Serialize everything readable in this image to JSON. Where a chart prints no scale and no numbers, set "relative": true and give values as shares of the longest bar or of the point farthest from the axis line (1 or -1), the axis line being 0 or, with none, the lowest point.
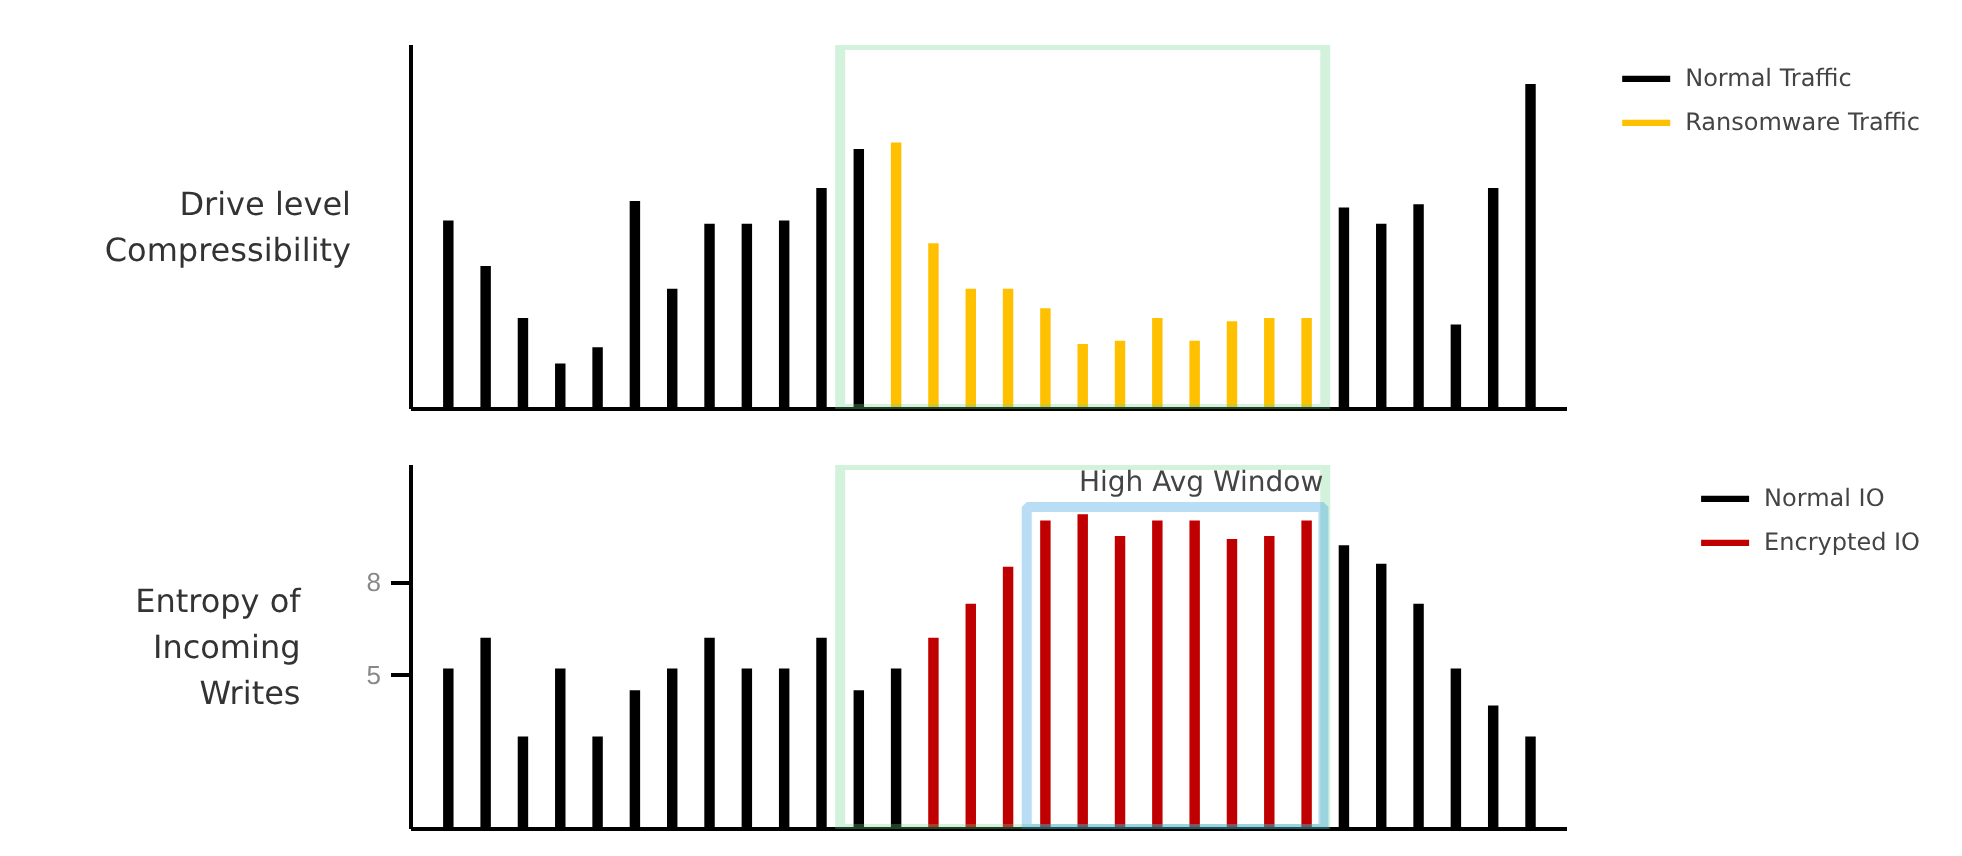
{
  "chart_data": [
    {
      "type": "bar",
      "relative": true,
      "ylabel": "Drive level\nCompressibility",
      "categories": [
        null,
        null,
        null,
        null,
        null,
        null,
        null,
        null,
        null,
        null,
        null,
        null,
        null,
        null,
        null,
        null,
        null,
        null,
        null,
        null,
        null,
        null,
        null,
        null,
        null,
        null,
        null,
        null,
        null,
        null
      ],
      "legend": "top right",
      "stacked": true,
      "series": [
        {
          "name": "Normal Traffic",
          "color": "#000000",
          "values": [
            0.58,
            0.44,
            0.28,
            0.14,
            0.19,
            0.64,
            0.37,
            0.57,
            0.57,
            0.58,
            0.68,
            0.8,
            0,
            0,
            0,
            0,
            0,
            0,
            0,
            0,
            0,
            0,
            0,
            0,
            0.62,
            0.57,
            0.63,
            0.26,
            0.68,
            1
          ]
        },
        {
          "name": "Ransomware Traffic",
          "color": "#ffc000",
          "values": [
            0,
            0,
            0,
            0,
            0,
            0,
            0,
            0,
            0,
            0,
            0,
            0,
            0.82,
            0.51,
            0.37,
            0.37,
            0.31,
            0.2,
            0.21,
            0.28,
            0.21,
            0.27,
            0.28,
            0.28,
            0,
            0,
            0,
            0,
            0,
            0
          ]
        }
      ]
    },
    {
      "type": "bar",
      "ylabel": "Entropy of\nIncoming\nWrites",
      "categories": [
        null,
        null,
        null,
        null,
        null,
        null,
        null,
        null,
        null,
        null,
        null,
        null,
        null,
        null,
        null,
        null,
        null,
        null,
        null,
        null,
        null,
        null,
        null,
        null,
        null,
        null,
        null,
        null,
        null,
        null
      ],
      "ylim": [
        0,
        11.8
      ],
      "yticks": [
        5,
        8
      ],
      "tick_labels": "y",
      "legend": "top right",
      "annotations": [
        "High Avg Window"
      ],
      "stacked": true,
      "series": [
        {
          "name": "Normal IO",
          "color": "#000000",
          "values": [
            5.2,
            6.2,
            3.0,
            5.2,
            3.0,
            4.5,
            5.2,
            6.2,
            5.2,
            5.2,
            6.2,
            4.5,
            5.2,
            0,
            0,
            0,
            0,
            0,
            0,
            0,
            0,
            0,
            0,
            0,
            9.2,
            8.6,
            7.3,
            5.2,
            4.0,
            3.0
          ]
        },
        {
          "name": "Encrypted IO",
          "color": "#c00000",
          "values": [
            0,
            0,
            0,
            0,
            0,
            0,
            0,
            0,
            0,
            0,
            0,
            0,
            0,
            6.2,
            7.3,
            8.5,
            10.0,
            10.2,
            9.5,
            10.0,
            10.0,
            9.4,
            9.5,
            10.0,
            0,
            0,
            0,
            0,
            0,
            0
          ]
        }
      ]
    }
  ]
}
